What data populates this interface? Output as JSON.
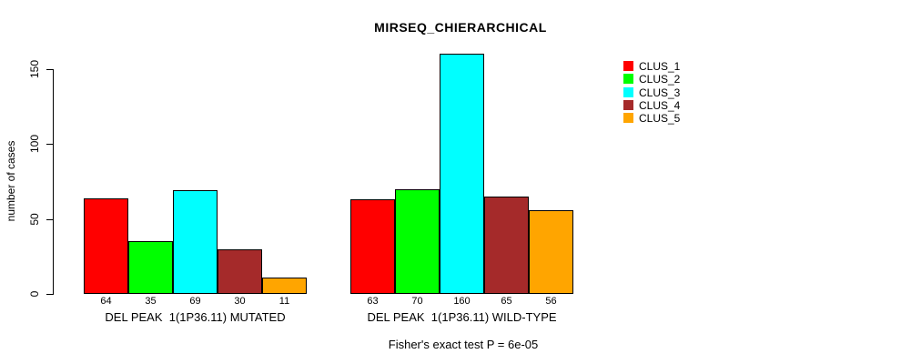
{
  "title": "MIRSEQ_CHIERARCHICAL",
  "footer": "Fisher's exact test P = 6e-05",
  "y_axis": {
    "label": "number of cases",
    "ticks": [
      "0",
      "50",
      "100",
      "150"
    ]
  },
  "legend": {
    "items": [
      {
        "label": "CLUS_1",
        "color": "#ff0000"
      },
      {
        "label": "CLUS_2",
        "color": "#00ff00"
      },
      {
        "label": "CLUS_3",
        "color": "#00ffff"
      },
      {
        "label": "CLUS_4",
        "color": "#a52a2a"
      },
      {
        "label": "CLUS_5",
        "color": "#ffa500"
      }
    ]
  },
  "chart_data": {
    "type": "bar",
    "title": "MIRSEQ_CHIERARCHICAL",
    "xlabel": "",
    "ylabel": "number of cases",
    "ylim": [
      0,
      160
    ],
    "yticks": [
      0,
      50,
      100,
      150
    ],
    "grid": false,
    "legend_position": "top-right",
    "series_names": [
      "CLUS_1",
      "CLUS_2",
      "CLUS_3",
      "CLUS_4",
      "CLUS_5"
    ],
    "series_colors": [
      "#ff0000",
      "#00ff00",
      "#00ffff",
      "#a52a2a",
      "#ffa500"
    ],
    "groups": [
      {
        "label": "DEL PEAK  1(1P36.11) MUTATED",
        "values": [
          64,
          35,
          69,
          30,
          11
        ]
      },
      {
        "label": "DEL PEAK  1(1P36.11) WILD-TYPE",
        "values": [
          63,
          70,
          160,
          65,
          56
        ]
      }
    ],
    "annotation": "Fisher's exact test P = 6e-05"
  }
}
